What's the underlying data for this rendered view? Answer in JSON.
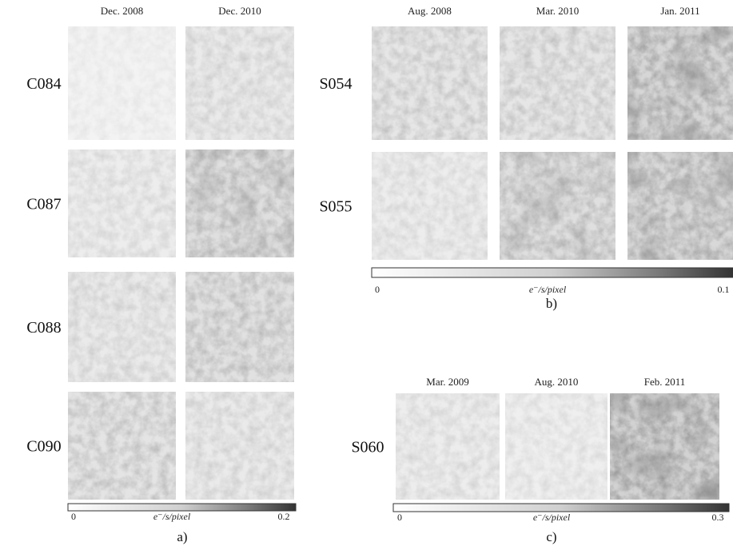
{
  "panels": [
    {
      "columns": [
        "Dec. 2008",
        "Dec. 2010"
      ],
      "rows": [
        "C084",
        "C087",
        "C088",
        "C090"
      ],
      "colorbar": {
        "min": 0,
        "label": "e⁻/s/pixel",
        "max": 0.2
      },
      "caption": "a)"
    },
    {
      "columns": [
        "Aug. 2008",
        "Mar. 2010",
        "Jan. 2011"
      ],
      "rows": [
        "S054",
        "S055"
      ],
      "colorbar": {
        "min": 0,
        "label": "e⁻/s/pixel",
        "max": 0.1
      },
      "caption": "b)"
    },
    {
      "columns": [
        "Mar. 2009",
        "Aug. 2010",
        "Feb. 2011"
      ],
      "rows": [
        "S060"
      ],
      "colorbar": {
        "min": 0,
        "label": "e⁻/s/pixel",
        "max": 0.3
      },
      "caption": "c)"
    }
  ]
}
